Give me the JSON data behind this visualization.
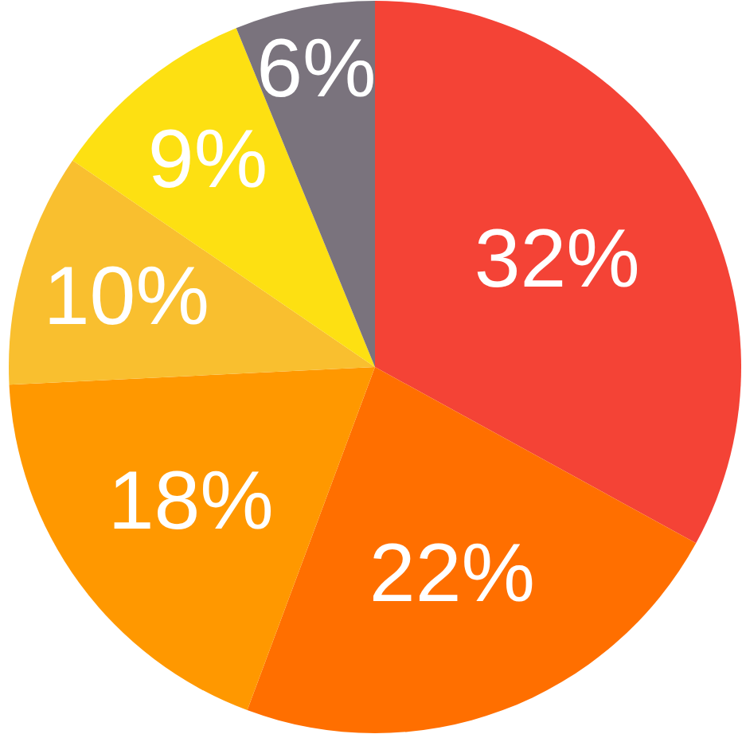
{
  "chart_data": {
    "type": "pie",
    "categories": [
      null,
      null,
      null,
      null,
      null,
      null
    ],
    "values": [
      32,
      22,
      18,
      10,
      9,
      6
    ],
    "colors": [
      "#f44336",
      "#ff6f00",
      "#ff9800",
      "#f9bf2f",
      "#fde012",
      "#7a737d"
    ],
    "value_labels": [
      "32%",
      "22%",
      "18%",
      "10%",
      "9%",
      "6%"
    ]
  }
}
